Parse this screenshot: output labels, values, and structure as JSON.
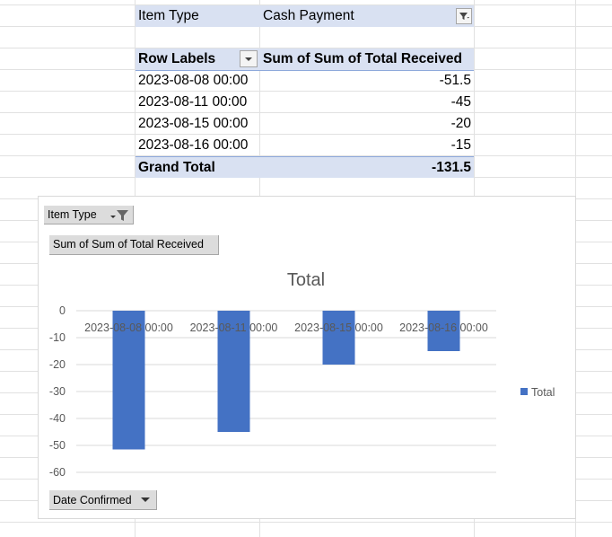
{
  "pivot": {
    "filter_label": "Item Type",
    "filter_value": "Cash Payment",
    "row_labels_header": "Row Labels",
    "value_header": "Sum of Sum of Total Received",
    "rows": [
      {
        "label": "2023-08-08 00:00",
        "value": "-51.5"
      },
      {
        "label": "2023-08-11 00:00",
        "value": "-45"
      },
      {
        "label": "2023-08-15 00:00",
        "value": "-20"
      },
      {
        "label": "2023-08-16 00:00",
        "value": "-15"
      }
    ],
    "grand_total_label": "Grand Total",
    "grand_total_value": "-131.5"
  },
  "chart_ui": {
    "filter_button_label": "Item Type",
    "value_button_label": "Sum of Sum of Total Received",
    "axis_button_label": "Date Confirmed"
  },
  "chart_data": {
    "type": "bar",
    "title": "Total",
    "categories": [
      "2023-08-08 00:00",
      "2023-08-11 00:00",
      "2023-08-15 00:00",
      "2023-08-16 00:00"
    ],
    "series": [
      {
        "name": "Total",
        "values": [
          -51.5,
          -45,
          -20,
          -15
        ],
        "color": "#4472c4"
      }
    ],
    "ylim": [
      -60,
      0
    ],
    "yticks": [
      0,
      -10,
      -20,
      -30,
      -40,
      -50,
      -60
    ],
    "grid": true,
    "legend": "right"
  }
}
